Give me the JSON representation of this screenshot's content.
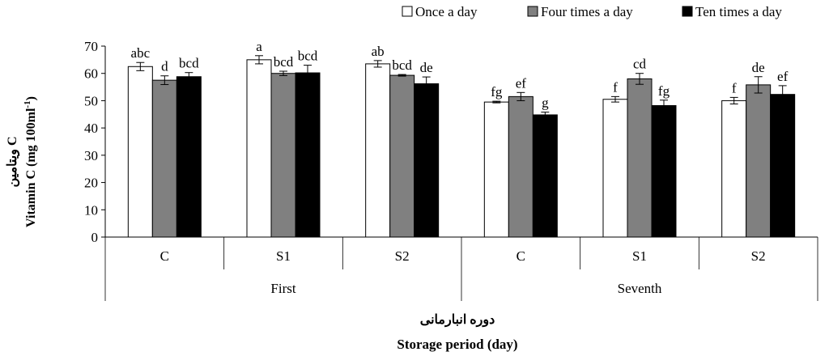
{
  "chart_data": {
    "type": "bar",
    "title": "",
    "ylabel_fa": "ویتامین C",
    "ylabel": "Vitamin C (mg 100ml",
    "ylabel_sup": "-1",
    "ylabel_close": ")",
    "xlabel_fa": "دوره انبارمانی",
    "xlabel": "Storage period (day)",
    "ylim": [
      0,
      70
    ],
    "yticks": [
      0,
      10,
      20,
      30,
      40,
      50,
      60,
      70
    ],
    "grid": false,
    "legend_position": "top",
    "groups": [
      {
        "label": "First",
        "categories": [
          "C",
          "S1",
          "S2"
        ]
      },
      {
        "label": "Seventh",
        "categories": [
          "C",
          "S1",
          "S2"
        ]
      }
    ],
    "series": [
      {
        "name": "Once a day",
        "color": "#ffffff",
        "values": [
          62.5,
          65.0,
          63.5,
          49.5,
          50.5,
          50.0
        ],
        "errors": [
          1.5,
          1.5,
          1.2,
          0.3,
          1.0,
          1.2
        ],
        "letters": [
          "abc",
          "a",
          "ab",
          "fg",
          "f",
          "f"
        ]
      },
      {
        "name": "Four times a day",
        "color": "#808080",
        "values": [
          57.5,
          60.0,
          59.3,
          51.5,
          58.0,
          55.8
        ],
        "errors": [
          1.6,
          0.8,
          0.3,
          1.5,
          2.0,
          3.0
        ],
        "letters": [
          "d",
          "bcd",
          "bcd",
          "ef",
          "cd",
          "de"
        ]
      },
      {
        "name": "Ten times a day",
        "color": "#000000",
        "values": [
          58.8,
          60.2,
          56.2,
          44.8,
          48.2,
          52.3
        ],
        "errors": [
          1.5,
          2.8,
          2.5,
          1.0,
          2.0,
          3.2
        ],
        "letters": [
          "bcd",
          "bcd",
          "de",
          "g",
          "fg",
          "ef"
        ]
      }
    ]
  }
}
